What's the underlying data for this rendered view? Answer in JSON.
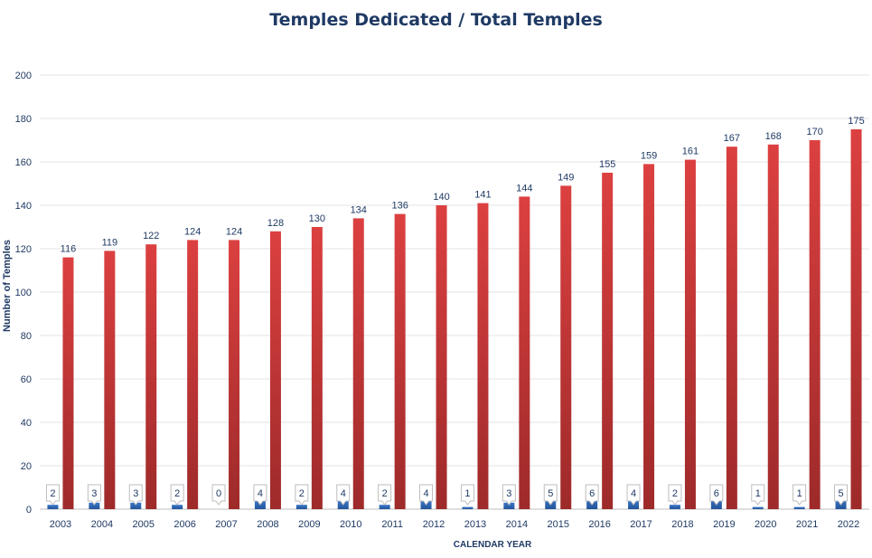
{
  "chart_data": {
    "type": "bar",
    "title": "Temples Dedicated / Total Temples",
    "xlabel": "CALENDAR YEAR",
    "ylabel": "Number of Temples",
    "ylim": [
      0,
      200
    ],
    "yticks": [
      0,
      20,
      40,
      60,
      80,
      100,
      120,
      140,
      160,
      180,
      200
    ],
    "categories": [
      "2003",
      "2004",
      "2005",
      "2006",
      "2007",
      "2008",
      "2009",
      "2010",
      "2011",
      "2012",
      "2013",
      "2014",
      "2015",
      "2016",
      "2017",
      "2018",
      "2019",
      "2020",
      "2021",
      "2022"
    ],
    "series": [
      {
        "values": [
          2,
          3,
          3,
          2,
          0,
          4,
          2,
          4,
          2,
          4,
          1,
          3,
          5,
          6,
          4,
          2,
          6,
          1,
          1,
          5
        ],
        "color": "#2f66b3"
      },
      {
        "values": [
          116,
          119,
          122,
          124,
          124,
          128,
          130,
          134,
          136,
          140,
          141,
          144,
          149,
          155,
          159,
          161,
          167,
          168,
          170,
          175
        ],
        "color": "#d23b3b"
      }
    ],
    "grid": true,
    "legend": "none"
  }
}
